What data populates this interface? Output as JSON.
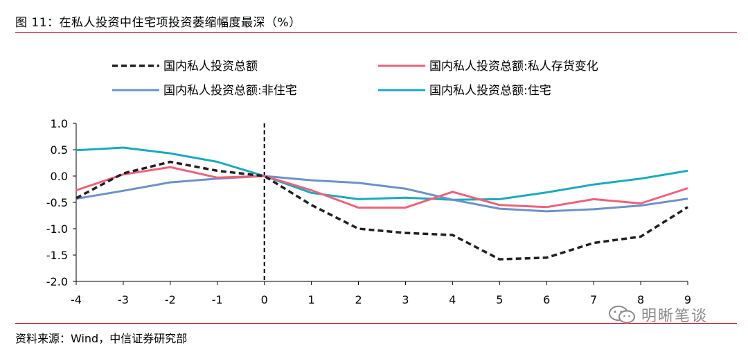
{
  "header": {
    "title": "图 11：在私人投资中住宅项投资萎缩幅度最深（%）"
  },
  "footer": {
    "source": "资料来源：Wind，中信证券研究部",
    "watermark": "明晰笔谈"
  },
  "chart_data": {
    "type": "line",
    "x": [
      -4,
      -3,
      -2,
      -1,
      0,
      1,
      2,
      3,
      4,
      5,
      6,
      7,
      8,
      9
    ],
    "xlim": [
      -4,
      9
    ],
    "ylim": [
      -2.0,
      1.0
    ],
    "x_ticks": [
      "-4",
      "-3",
      "-2",
      "-1",
      "0",
      "1",
      "2",
      "3",
      "4",
      "5",
      "6",
      "7",
      "8",
      "9"
    ],
    "y_ticks": [
      "1.0",
      "0.5",
      "0.0",
      "-0.5",
      "-1.0",
      "-1.5",
      "-2.0"
    ],
    "y_tick_values": [
      1.0,
      0.5,
      0.0,
      -0.5,
      -1.0,
      -1.5,
      -2.0
    ],
    "vline_x": 0,
    "legend_position": "top",
    "series": [
      {
        "name": "国内私人投资总额",
        "color": "#231f20",
        "dash": "dashed",
        "values": [
          -0.42,
          0.05,
          0.27,
          0.1,
          0.0,
          -0.55,
          -1.0,
          -1.08,
          -1.12,
          -1.58,
          -1.55,
          -1.27,
          -1.15,
          -0.59
        ]
      },
      {
        "name": "国内私人投资总额:私人存货变化",
        "color": "#f0607a",
        "dash": "solid",
        "values": [
          -0.27,
          0.03,
          0.17,
          -0.03,
          0.0,
          -0.27,
          -0.6,
          -0.6,
          -0.3,
          -0.55,
          -0.59,
          -0.44,
          -0.52,
          -0.23
        ]
      },
      {
        "name": "国内私人投资总额:非住宅",
        "color": "#6b92c8",
        "dash": "solid",
        "values": [
          -0.43,
          -0.28,
          -0.12,
          -0.05,
          0.0,
          -0.08,
          -0.13,
          -0.24,
          -0.45,
          -0.62,
          -0.67,
          -0.63,
          -0.56,
          -0.43
        ]
      },
      {
        "name": "国内私人投资总额:住宅",
        "color": "#1aaabb",
        "dash": "solid",
        "values": [
          0.49,
          0.54,
          0.43,
          0.27,
          0.0,
          -0.32,
          -0.44,
          -0.41,
          -0.45,
          -0.44,
          -0.31,
          -0.16,
          -0.05,
          0.1
        ]
      }
    ]
  }
}
